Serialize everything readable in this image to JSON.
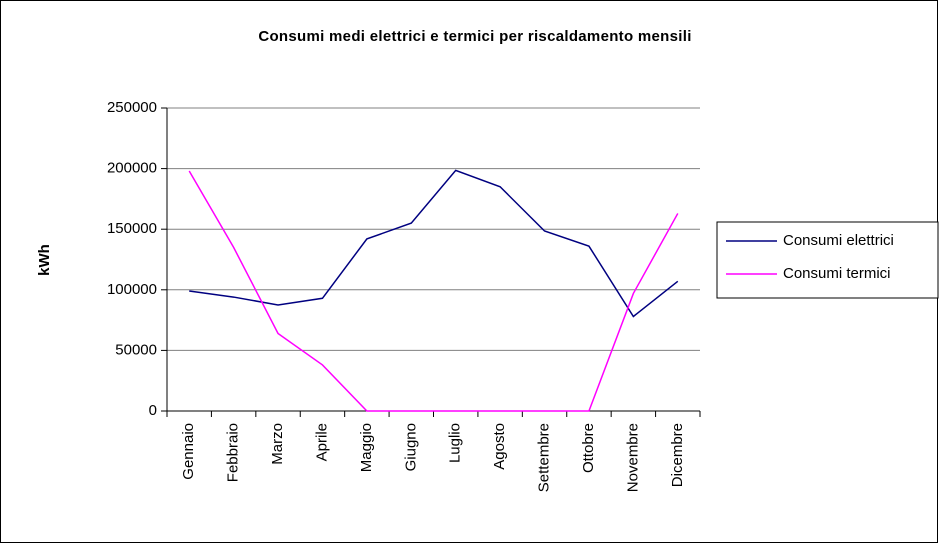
{
  "chart_data": {
    "type": "line",
    "title": "Consumi medi elettrici e termici per riscaldamento mensili",
    "y_label": "kWh",
    "categories": [
      "Gennaio",
      "Febbraio",
      "Marzo",
      "Aprile",
      "Maggio",
      "Giugno",
      "Luglio",
      "Agosto",
      "Settembre",
      "Ottobre",
      "Novembre",
      "Dicembre"
    ],
    "series": [
      {
        "name": "Consumi elettrici",
        "color": "#000080",
        "values": [
          99000,
          94000,
          87500,
          93000,
          142000,
          155000,
          198500,
          185000,
          148500,
          136000,
          78000,
          107000
        ]
      },
      {
        "name": "Consumi termici",
        "color": "#ff00ff",
        "values": [
          198000,
          135000,
          64000,
          38000,
          0,
          0,
          0,
          0,
          0,
          0,
          97000,
          163000
        ]
      }
    ],
    "ylim": [
      0,
      250000
    ],
    "yticks": [
      0,
      50000,
      100000,
      150000,
      200000,
      250000
    ],
    "grid": true,
    "legend": "right"
  }
}
